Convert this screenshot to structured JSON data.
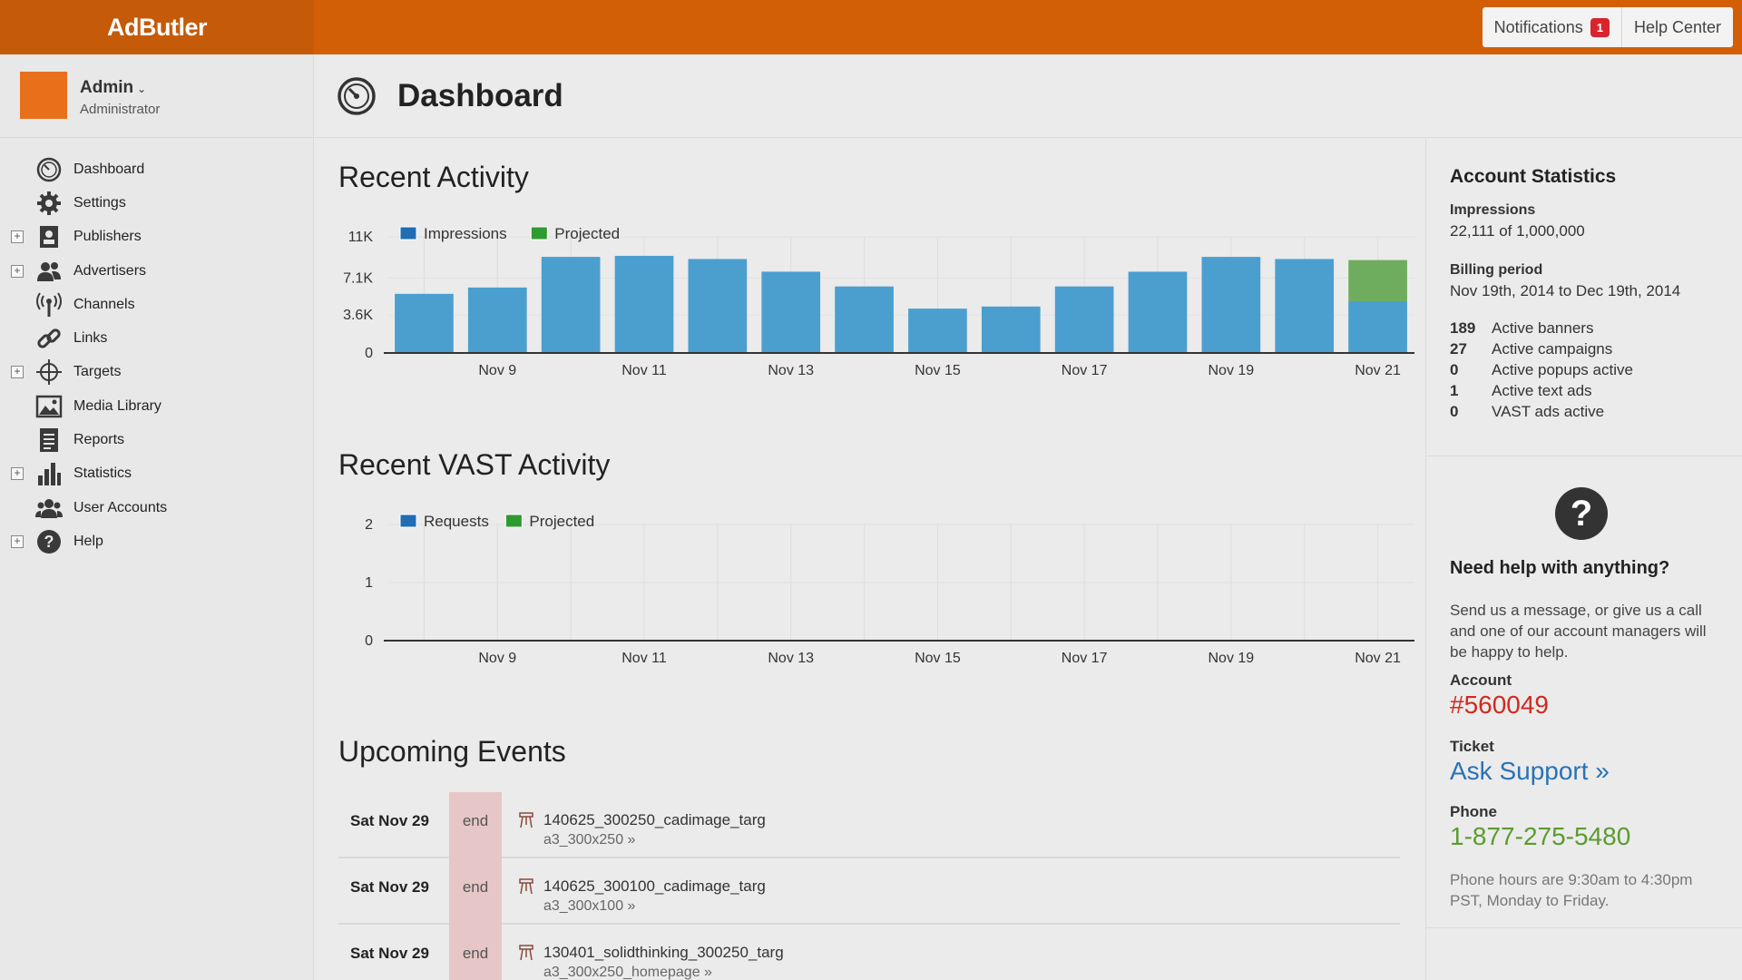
{
  "app": {
    "logo": "AdButler"
  },
  "topbar": {
    "notifications_label": "Notifications",
    "notifications_count": "1",
    "help_center_label": "Help Center"
  },
  "user": {
    "name": "Admin",
    "role": "Administrator"
  },
  "sidebar": {
    "items": [
      {
        "label": "Dashboard",
        "icon": "dashboard-icon",
        "expandable": false
      },
      {
        "label": "Settings",
        "icon": "gear-icon",
        "expandable": false
      },
      {
        "label": "Publishers",
        "icon": "publisher-icon",
        "expandable": true
      },
      {
        "label": "Advertisers",
        "icon": "advertisers-icon",
        "expandable": true
      },
      {
        "label": "Channels",
        "icon": "antenna-icon",
        "expandable": false
      },
      {
        "label": "Links",
        "icon": "link-icon",
        "expandable": false
      },
      {
        "label": "Targets",
        "icon": "crosshair-icon",
        "expandable": true
      },
      {
        "label": "Media Library",
        "icon": "image-icon",
        "expandable": false
      },
      {
        "label": "Reports",
        "icon": "report-icon",
        "expandable": false
      },
      {
        "label": "Statistics",
        "icon": "bar-chart-icon",
        "expandable": true
      },
      {
        "label": "User Accounts",
        "icon": "users-icon",
        "expandable": false
      },
      {
        "label": "Help",
        "icon": "help-icon",
        "expandable": true
      }
    ]
  },
  "header": {
    "title": "Dashboard"
  },
  "sections": {
    "recent_activity": "Recent Activity",
    "recent_vast": "Recent VAST Activity",
    "upcoming_events": "Upcoming Events"
  },
  "chart_data": [
    {
      "type": "bar",
      "title": "Recent Activity",
      "categories": [
        "Nov 8",
        "Nov 9",
        "Nov 10",
        "Nov 11",
        "Nov 12",
        "Nov 13",
        "Nov 14",
        "Nov 15",
        "Nov 16",
        "Nov 17",
        "Nov 18",
        "Nov 19",
        "Nov 20",
        "Nov 21"
      ],
      "tick_labels": [
        "Nov 9",
        "Nov 11",
        "Nov 13",
        "Nov 15",
        "Nov 17",
        "Nov 19",
        "Nov 21"
      ],
      "y_ticks": [
        "0",
        "3.6K",
        "7.1K",
        "11K"
      ],
      "y_tick_values": [
        0,
        3600,
        7100,
        11000
      ],
      "ylim": [
        0,
        11000
      ],
      "series": [
        {
          "name": "Impressions",
          "color": "#4a9fcf",
          "values": [
            5600,
            6200,
            9100,
            9200,
            8900,
            7700,
            6300,
            4200,
            4400,
            6300,
            7700,
            9100,
            8900,
            4900
          ]
        },
        {
          "name": "Projected",
          "color": "#6fad5e",
          "values": [
            0,
            0,
            0,
            0,
            0,
            0,
            0,
            0,
            0,
            0,
            0,
            0,
            0,
            3900
          ]
        }
      ],
      "legend_colors": {
        "Impressions": "#1f6db4",
        "Projected": "#2f9a2f"
      },
      "stacked": true,
      "grid": true,
      "legend": "top-left"
    },
    {
      "type": "bar",
      "title": "Recent VAST Activity",
      "categories": [
        "Nov 8",
        "Nov 9",
        "Nov 10",
        "Nov 11",
        "Nov 12",
        "Nov 13",
        "Nov 14",
        "Nov 15",
        "Nov 16",
        "Nov 17",
        "Nov 18",
        "Nov 19",
        "Nov 20",
        "Nov 21"
      ],
      "tick_labels": [
        "Nov 9",
        "Nov 11",
        "Nov 13",
        "Nov 15",
        "Nov 17",
        "Nov 19",
        "Nov 21"
      ],
      "y_ticks": [
        "0",
        "1",
        "2"
      ],
      "y_tick_values": [
        0,
        1,
        2
      ],
      "ylim": [
        0,
        2
      ],
      "series": [
        {
          "name": "Requests",
          "color": "#4a9fcf",
          "values": [
            0,
            0,
            0,
            0,
            0,
            0,
            0,
            0,
            0,
            0,
            0,
            0,
            0,
            0
          ]
        },
        {
          "name": "Projected",
          "color": "#6fad5e",
          "values": [
            0,
            0,
            0,
            0,
            0,
            0,
            0,
            0,
            0,
            0,
            0,
            0,
            0,
            0
          ]
        }
      ],
      "legend_colors": {
        "Requests": "#1f6db4",
        "Projected": "#2f9a2f"
      },
      "stacked": true,
      "grid": true,
      "legend": "top-left"
    }
  ],
  "events": [
    {
      "date": "Sat Nov 29",
      "type": "end",
      "name": "140625_300250_cadimage_targ",
      "zone": "a3_300x250 »"
    },
    {
      "date": "Sat Nov 29",
      "type": "end",
      "name": "140625_300100_cadimage_targ",
      "zone": "a3_300x100 »"
    },
    {
      "date": "Sat Nov 29",
      "type": "end",
      "name": "130401_solidthinking_300250_targ",
      "zone": "a3_300x250_homepage »"
    }
  ],
  "account_stats": {
    "title": "Account Statistics",
    "impressions_label": "Impressions",
    "impressions_value": "22,111 of 1,000,000",
    "billing_label": "Billing period",
    "billing_value": "Nov 19th, 2014 to Dec 19th, 2014",
    "active": [
      {
        "count": "189",
        "label": "Active banners"
      },
      {
        "count": "27",
        "label": "Active campaigns"
      },
      {
        "count": "0",
        "label": "Active popups active"
      },
      {
        "count": "1",
        "label": "Active text ads"
      },
      {
        "count": "0",
        "label": "VAST ads active"
      }
    ]
  },
  "help": {
    "icon_text": "?",
    "title": "Need help with anything?",
    "text": "Send us a message, or give us a call and one of our account managers will be happy to help.",
    "account_label": "Account",
    "account_value": "#560049",
    "ticket_label": "Ticket",
    "ticket_value": "Ask Support »",
    "phone_label": "Phone",
    "phone_value": "1-877-275-5480",
    "hours": "Phone hours are 9:30am to 4:30pm PST, Monday to Friday."
  },
  "colors": {
    "topbar": "#d25f05",
    "account": "#d02a1e",
    "support_link": "#2a72b5",
    "phone": "#5b9b2f"
  }
}
